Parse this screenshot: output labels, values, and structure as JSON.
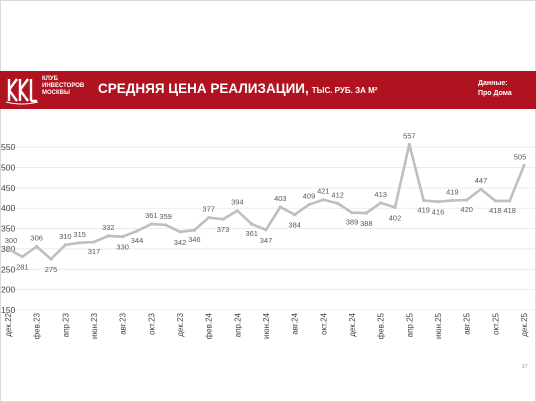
{
  "header": {
    "logo_lines": [
      "КЛУБ",
      "ИНВЕСТОРОВ",
      "МОСКВЫ"
    ],
    "title": "СРЕДНЯЯ ЦЕНА РЕАЛИЗАЦИИ,",
    "title_unit": "ТЫС. РУБ. ЗА М²",
    "source_label": "Данные:",
    "source_name": "Про Дома"
  },
  "page_number": "17",
  "colors": {
    "banner": "#b1121f",
    "line": "#bfbfbf",
    "grid": "#e6e6e6"
  },
  "chart_data": {
    "type": "line",
    "x": [
      "дек.22",
      "янв.23",
      "фев.23",
      "мар.23",
      "апр.23",
      "май.23",
      "июн.23",
      "июл.23",
      "авг.23",
      "сен.23",
      "окт.23",
      "ноя.23",
      "дек.23",
      "янв.24",
      "фев.24",
      "мар.24",
      "апр.24",
      "май.24",
      "июн.24",
      "июл.24",
      "авг.24",
      "сен.24",
      "окт.24",
      "ноя.24",
      "дек.24",
      "янв.25",
      "фев.25",
      "мар.25",
      "апр.25",
      "май.25",
      "июн.25",
      "июл.25",
      "авг.25",
      "сен.25",
      "окт.25",
      "ноя.25",
      "дек.25"
    ],
    "values": [
      300,
      281,
      306,
      275,
      310,
      315,
      317,
      332,
      330,
      344,
      361,
      359,
      342,
      346,
      377,
      373,
      394,
      361,
      347,
      403,
      384,
      409,
      421,
      412,
      389,
      388,
      413,
      402,
      557,
      419,
      416,
      419,
      420,
      447,
      418,
      418,
      505
    ],
    "shown_ticks": [
      "дек.22",
      "фев.23",
      "апр.23",
      "июн.23",
      "авг.23",
      "окт.23",
      "дек.23",
      "фев.24",
      "апр.24",
      "июн.24",
      "авг.24",
      "окт.24",
      "дек.24",
      "фев.25",
      "апр.25",
      "июн.25",
      "авг.25",
      "окт.25",
      "дек.25"
    ],
    "yticks": [
      150,
      200,
      250,
      300,
      350,
      400,
      450,
      500,
      550
    ],
    "ylim": [
      150,
      575
    ],
    "grid": true,
    "legend": "none"
  }
}
